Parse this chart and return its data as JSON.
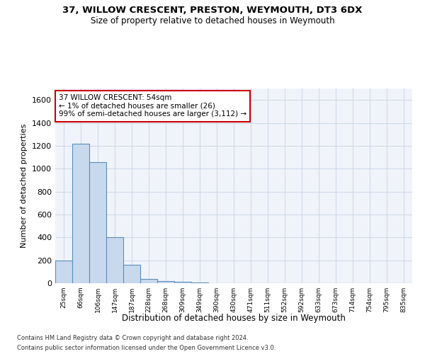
{
  "title1": "37, WILLOW CRESCENT, PRESTON, WEYMOUTH, DT3 6DX",
  "title2": "Size of property relative to detached houses in Weymouth",
  "xlabel": "Distribution of detached houses by size in Weymouth",
  "ylabel": "Number of detached properties",
  "footer1": "Contains HM Land Registry data © Crown copyright and database right 2024.",
  "footer2": "Contains public sector information licensed under the Open Government Licence v3.0.",
  "annotation_title": "37 WILLOW CRESCENT: 54sqm",
  "annotation_line2": "← 1% of detached houses are smaller (26)",
  "annotation_line3": "99% of semi-detached houses are larger (3,112) →",
  "bar_color": "#c9d9ed",
  "bar_edge_color": "#5b8db8",
  "annotation_box_edge": "#cc0000",
  "categories": [
    "25sqm",
    "66sqm",
    "106sqm",
    "147sqm",
    "187sqm",
    "228sqm",
    "268sqm",
    "309sqm",
    "349sqm",
    "390sqm",
    "430sqm",
    "471sqm",
    "511sqm",
    "552sqm",
    "592sqm",
    "633sqm",
    "673sqm",
    "714sqm",
    "754sqm",
    "795sqm",
    "835sqm"
  ],
  "values": [
    200,
    1220,
    1060,
    400,
    160,
    40,
    20,
    10,
    5,
    2,
    0,
    0,
    0,
    0,
    0,
    0,
    0,
    0,
    0,
    0,
    0
  ],
  "ylim": [
    0,
    1700
  ],
  "yticks": [
    0,
    200,
    400,
    600,
    800,
    1000,
    1200,
    1400,
    1600
  ],
  "grid_color": "#d0d8e8",
  "bg_color": "#f0f4fa"
}
